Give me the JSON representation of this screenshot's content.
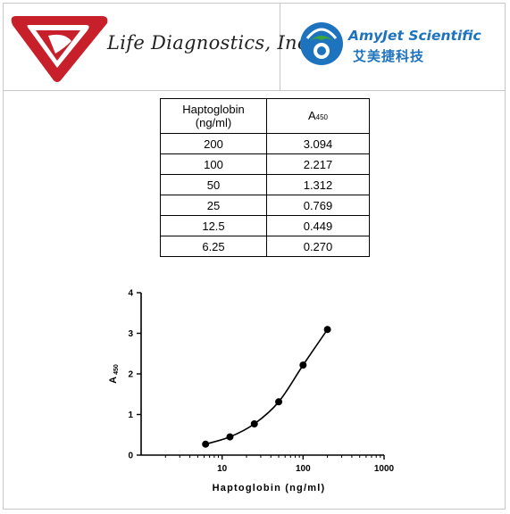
{
  "header": {
    "life_diagnostics_name": "Life Diagnostics, Inc.",
    "amyjet_name": "AmyJet Scientific",
    "amyjet_chinese": "艾美捷科技",
    "colors": {
      "life_diagnostics_red": "#c8202b",
      "amyjet_blue": "#1e73be",
      "amyjet_green": "#3aa53a"
    }
  },
  "table": {
    "header_col1_line1": "Haptoglobin",
    "header_col1_line2": "(ng/ml)",
    "header_col2_main": "A",
    "header_col2_sub": "450",
    "rows": [
      {
        "conc": "200",
        "abs": "3.094"
      },
      {
        "conc": "100",
        "abs": "2.217"
      },
      {
        "conc": "50",
        "abs": "1.312"
      },
      {
        "conc": "25",
        "abs": "0.769"
      },
      {
        "conc": "12.5",
        "abs": "0.449"
      },
      {
        "conc": "6.25",
        "abs": "0.270"
      }
    ]
  },
  "chart_data": {
    "type": "scatter",
    "title": "",
    "xlabel": "Haptoglobin (ng/ml)",
    "ylabel_main": "A",
    "ylabel_sub": "450",
    "x_scale": "log",
    "xlim": [
      1,
      1000
    ],
    "ylim": [
      0,
      4
    ],
    "x_ticks": [
      10,
      100,
      1000
    ],
    "y_ticks": [
      0,
      1,
      2,
      3,
      4
    ],
    "grid": false,
    "curve_fit": true,
    "series": [
      {
        "x": [
          6.25,
          12.5,
          25,
          50,
          100,
          200
        ],
        "y": [
          0.27,
          0.449,
          0.769,
          1.312,
          2.217,
          3.094
        ]
      }
    ]
  }
}
